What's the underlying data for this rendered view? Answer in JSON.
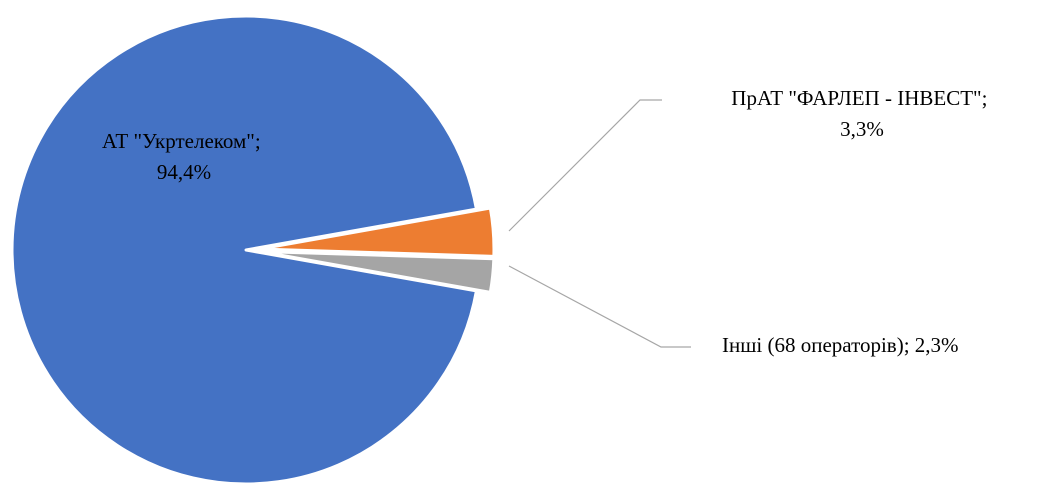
{
  "chart_data": {
    "type": "pie",
    "exploded": true,
    "slices": [
      {
        "label_lines": [
          "АТ \"Укртелеком\";",
          "94,4%"
        ],
        "value": 94.4,
        "color": "#4472c4"
      },
      {
        "label_lines": [
          "ПрАТ \"ФАРЛЕП - ІНВЕСТ\";",
          "3,3%"
        ],
        "value": 3.3,
        "color": "#ed7d31"
      },
      {
        "label_lines": [
          "Інші (68 операторів); 2,3%"
        ],
        "value": 2.3,
        "color": "#a5a5a5"
      }
    ],
    "legend": "none"
  }
}
